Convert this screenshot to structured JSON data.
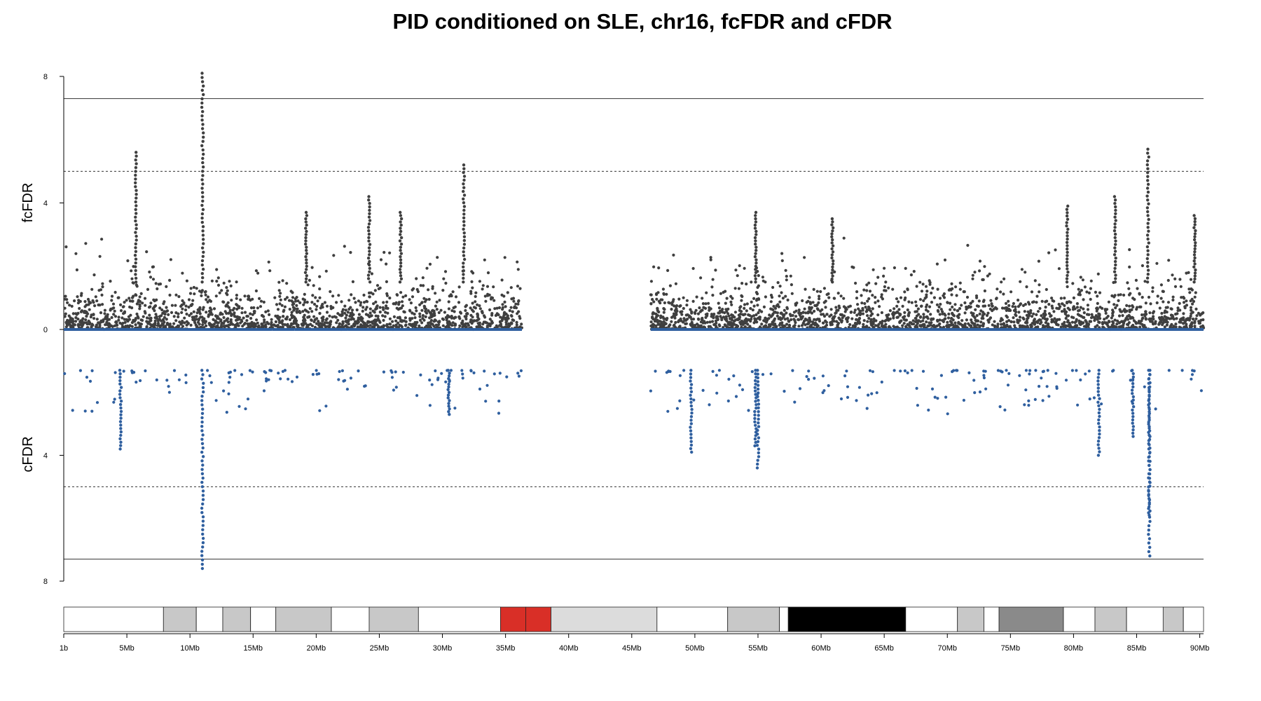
{
  "chart_data": {
    "type": "scatter",
    "title": "PID conditioned on SLE, chr16, fcFDR and cFDR",
    "panels": [
      {
        "name": "fcFDR",
        "ylabel": "fcFDR",
        "direction": "up",
        "ylim": [
          0,
          8
        ],
        "yticks": [
          "0",
          "4",
          "8"
        ],
        "color": "#3f3f3f"
      },
      {
        "name": "cFDR",
        "ylabel": "cFDR",
        "direction": "down",
        "ylim": [
          0,
          8
        ],
        "yticks": [
          "4",
          "8"
        ],
        "color": "#2f5f9f"
      }
    ],
    "x_unit": "Mb",
    "xlim": [
      0,
      90.3
    ],
    "xticks": [
      {
        "pos": 0,
        "label": "1b"
      },
      {
        "pos": 5,
        "label": "5Mb"
      },
      {
        "pos": 10,
        "label": "10Mb"
      },
      {
        "pos": 15,
        "label": "15Mb"
      },
      {
        "pos": 20,
        "label": "20Mb"
      },
      {
        "pos": 25,
        "label": "25Mb"
      },
      {
        "pos": 30,
        "label": "30Mb"
      },
      {
        "pos": 35,
        "label": "35Mb"
      },
      {
        "pos": 40,
        "label": "40Mb"
      },
      {
        "pos": 45,
        "label": "45Mb"
      },
      {
        "pos": 50,
        "label": "50Mb"
      },
      {
        "pos": 55,
        "label": "55Mb"
      },
      {
        "pos": 60,
        "label": "60Mb"
      },
      {
        "pos": 65,
        "label": "65Mb"
      },
      {
        "pos": 70,
        "label": "70Mb"
      },
      {
        "pos": 75,
        "label": "75Mb"
      },
      {
        "pos": 80,
        "label": "80Mb"
      },
      {
        "pos": 85,
        "label": "85Mb"
      },
      {
        "pos": 90,
        "label": "90Mb"
      }
    ],
    "thresholds": [
      {
        "value": 7.3,
        "style": "solid"
      },
      {
        "value": 5.0,
        "style": "dashed"
      }
    ],
    "peaks": [
      {
        "panel": "fcFDR",
        "x": 11.0,
        "y": 8.1
      },
      {
        "panel": "fcFDR",
        "x": 5.7,
        "y": 5.6
      },
      {
        "panel": "fcFDR",
        "x": 31.7,
        "y": 5.2
      },
      {
        "panel": "fcFDR",
        "x": 85.9,
        "y": 5.7
      },
      {
        "panel": "fcFDR",
        "x": 24.2,
        "y": 4.2
      },
      {
        "panel": "fcFDR",
        "x": 83.3,
        "y": 4.2
      },
      {
        "panel": "fcFDR",
        "x": 26.7,
        "y": 3.7
      },
      {
        "panel": "fcFDR",
        "x": 19.2,
        "y": 3.7
      },
      {
        "panel": "fcFDR",
        "x": 54.8,
        "y": 3.7
      },
      {
        "panel": "fcFDR",
        "x": 79.5,
        "y": 3.9
      },
      {
        "panel": "fcFDR",
        "x": 89.6,
        "y": 3.6
      },
      {
        "panel": "fcFDR",
        "x": 60.9,
        "y": 3.5
      },
      {
        "panel": "cFDR",
        "x": 11.0,
        "y": 7.6
      },
      {
        "panel": "cFDR",
        "x": 86.0,
        "y": 7.2
      },
      {
        "panel": "cFDR",
        "x": 86.0,
        "y": 5.9
      },
      {
        "panel": "cFDR",
        "x": 55.0,
        "y": 4.4
      },
      {
        "panel": "cFDR",
        "x": 54.8,
        "y": 3.7
      },
      {
        "panel": "cFDR",
        "x": 49.7,
        "y": 3.9
      },
      {
        "panel": "cFDR",
        "x": 82.0,
        "y": 4.0
      },
      {
        "panel": "cFDR",
        "x": 4.5,
        "y": 3.8
      },
      {
        "panel": "cFDR",
        "x": 30.5,
        "y": 2.7
      },
      {
        "panel": "cFDR",
        "x": 84.7,
        "y": 3.4
      }
    ],
    "data_regions_mb": [
      [
        0,
        16.5
      ],
      [
        16.5,
        18.3
      ],
      [
        18.3,
        22.5
      ],
      [
        22.5,
        32.3
      ],
      [
        32.3,
        36.3
      ],
      [
        46.5,
        90.3
      ]
    ],
    "ideogram": [
      {
        "start": 0,
        "end": 7.9,
        "color": "#ffffff"
      },
      {
        "start": 7.9,
        "end": 10.5,
        "color": "#c8c8c8"
      },
      {
        "start": 10.5,
        "end": 12.6,
        "color": "#ffffff"
      },
      {
        "start": 12.6,
        "end": 14.8,
        "color": "#c8c8c8"
      },
      {
        "start": 14.8,
        "end": 16.8,
        "color": "#ffffff"
      },
      {
        "start": 16.8,
        "end": 21.2,
        "color": "#c8c8c8"
      },
      {
        "start": 21.2,
        "end": 24.2,
        "color": "#ffffff"
      },
      {
        "start": 24.2,
        "end": 28.1,
        "color": "#c8c8c8"
      },
      {
        "start": 28.1,
        "end": 34.6,
        "color": "#ffffff"
      },
      {
        "start": 34.6,
        "end": 36.6,
        "color": "#d92f27"
      },
      {
        "start": 36.6,
        "end": 38.6,
        "color": "#d92f27"
      },
      {
        "start": 38.6,
        "end": 47.0,
        "color": "#dcdcdc"
      },
      {
        "start": 47.0,
        "end": 52.6,
        "color": "#ffffff"
      },
      {
        "start": 52.6,
        "end": 56.7,
        "color": "#c8c8c8"
      },
      {
        "start": 56.7,
        "end": 57.4,
        "color": "#ffffff"
      },
      {
        "start": 57.4,
        "end": 66.7,
        "color": "#000000"
      },
      {
        "start": 66.7,
        "end": 70.8,
        "color": "#ffffff"
      },
      {
        "start": 70.8,
        "end": 72.9,
        "color": "#c8c8c8"
      },
      {
        "start": 72.9,
        "end": 74.1,
        "color": "#ffffff"
      },
      {
        "start": 74.1,
        "end": 79.2,
        "color": "#8a8a8a"
      },
      {
        "start": 79.2,
        "end": 81.7,
        "color": "#ffffff"
      },
      {
        "start": 81.7,
        "end": 84.2,
        "color": "#c8c8c8"
      },
      {
        "start": 84.2,
        "end": 87.1,
        "color": "#ffffff"
      },
      {
        "start": 87.1,
        "end": 88.7,
        "color": "#c8c8c8"
      },
      {
        "start": 88.7,
        "end": 90.3,
        "color": "#ffffff"
      }
    ]
  }
}
